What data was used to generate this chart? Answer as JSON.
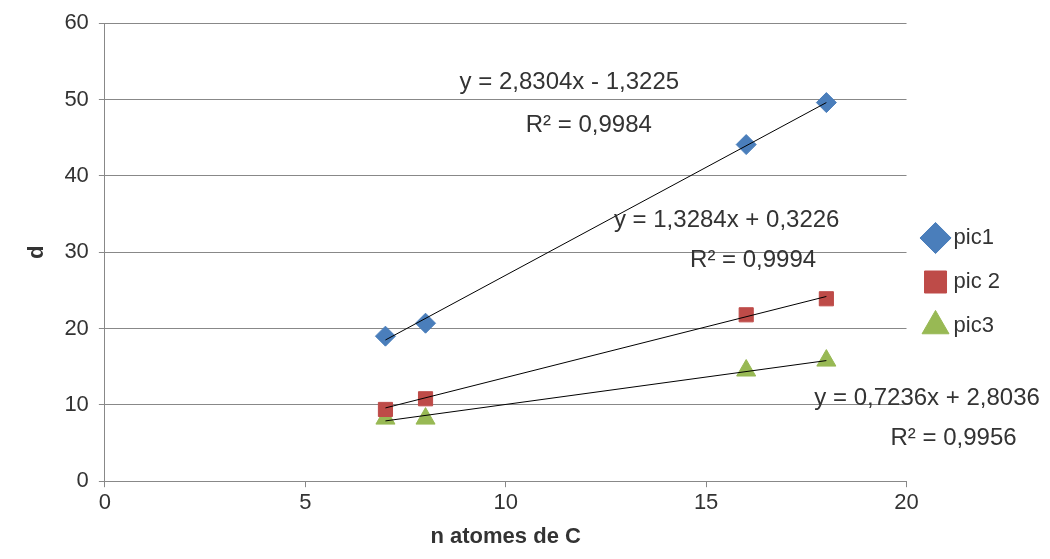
{
  "chart_data": {
    "type": "scatter",
    "xlabel": "n atomes de C",
    "ylabel": "d",
    "xlim": [
      0,
      20
    ],
    "xticks": [
      0,
      5,
      10,
      15,
      20
    ],
    "ylim": [
      0,
      60
    ],
    "yticks": [
      0,
      10,
      20,
      30,
      40,
      50,
      60
    ],
    "grid": "y",
    "legend": "right",
    "series": [
      {
        "name": "pic1",
        "color": "#4a7ebb",
        "marker": "diamond",
        "x": [
          7,
          8,
          16,
          18
        ],
        "values": [
          19.0,
          20.7,
          44.1,
          49.6
        ]
      },
      {
        "name": "pic 2",
        "color": "#be4b48",
        "marker": "square",
        "x": [
          7,
          8,
          16,
          18
        ],
        "values": [
          9.4,
          10.8,
          21.8,
          23.9
        ]
      },
      {
        "name": "pic3",
        "color": "#98b954",
        "marker": "triangle",
        "x": [
          7,
          8,
          16,
          18
        ],
        "values": [
          8.2,
          8.2,
          14.5,
          15.8
        ]
      },
      {
        "type": "line",
        "color": "#000000",
        "marker": "none",
        "x": [
          7,
          18
        ],
        "values": [
          18.5,
          49.6
        ]
      },
      {
        "type": "line",
        "color": "#000000",
        "marker": "none",
        "x": [
          7,
          18
        ],
        "values": [
          9.6,
          24.2
        ]
      },
      {
        "type": "line",
        "color": "#000000",
        "marker": "none",
        "x": [
          7,
          18
        ],
        "values": [
          7.9,
          15.8
        ]
      }
    ],
    "annotations": [
      "y = 2,8304x - 1,3225",
      "R² = 0,9984",
      "y = 1,3284x + 0,3226",
      "R² = 0,9994",
      "y = 0,7236x + 2,8036",
      "R² = 0,9956"
    ]
  }
}
